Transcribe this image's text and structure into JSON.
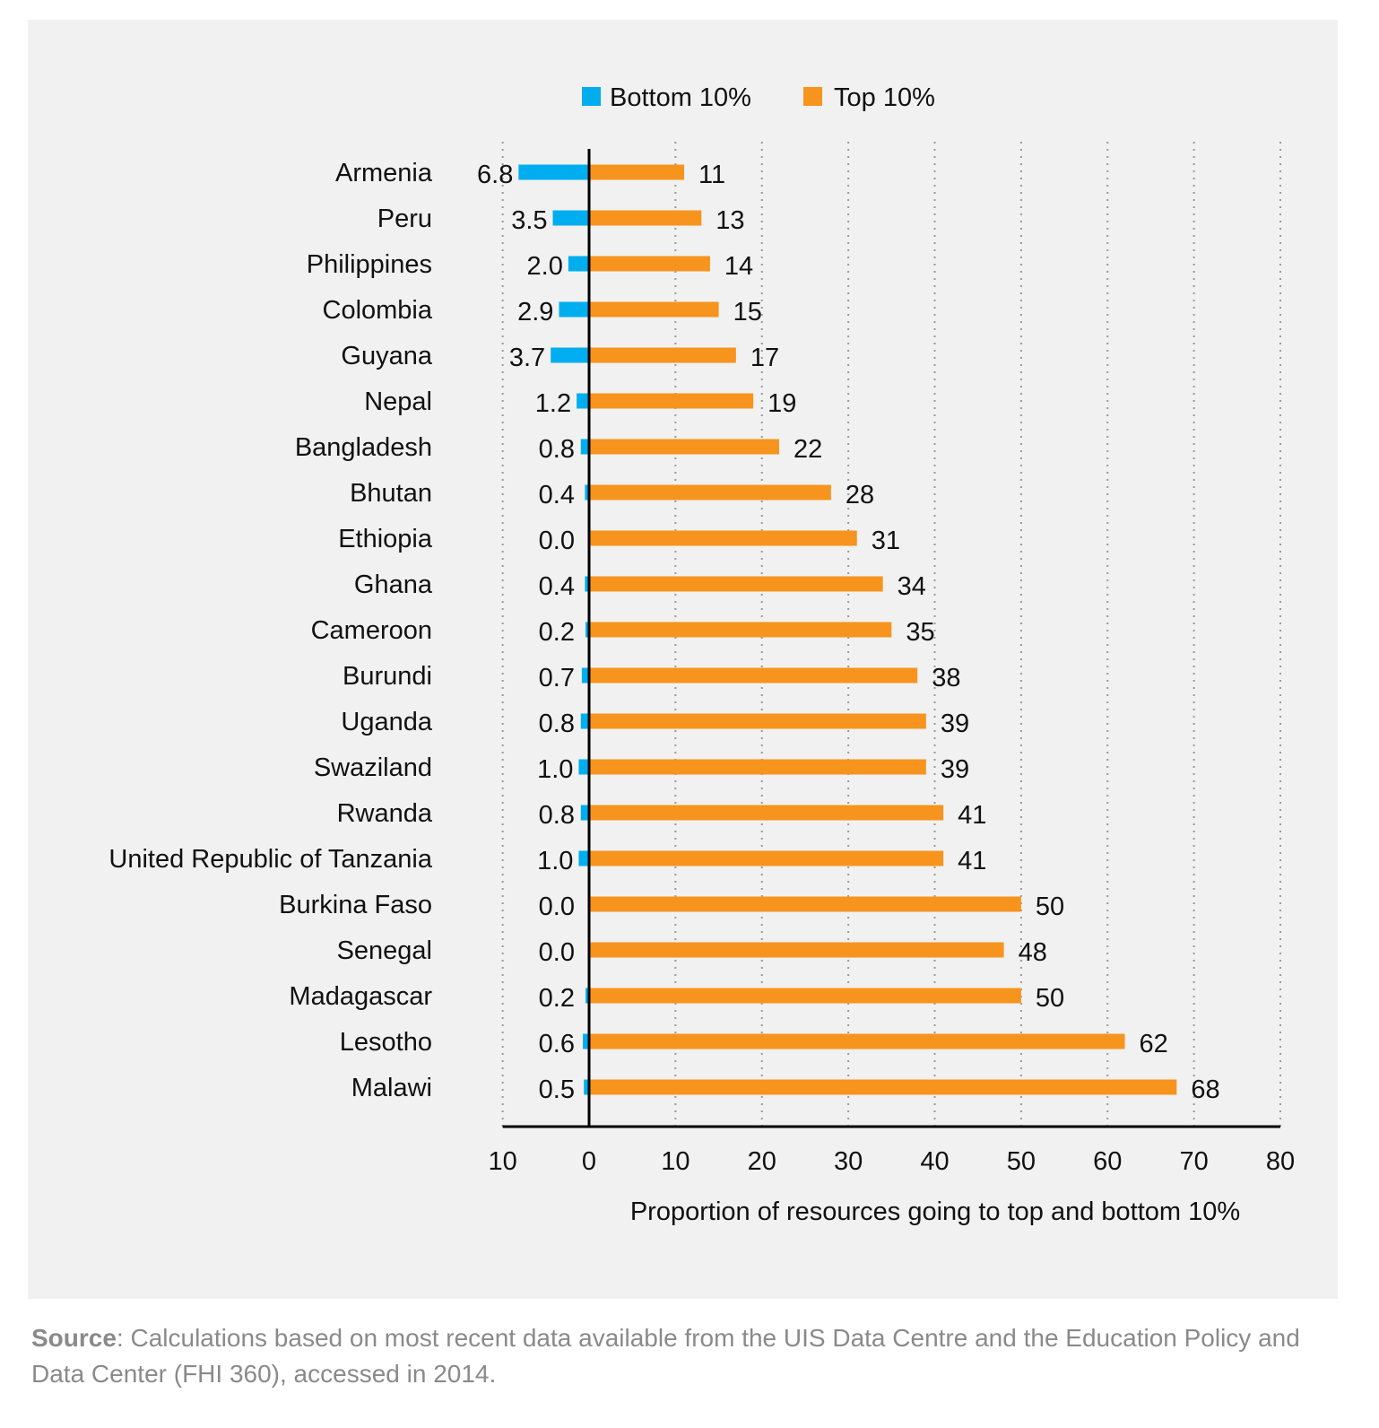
{
  "chart_data": {
    "type": "bar",
    "orientation": "horizontal",
    "diverging": true,
    "categories": [
      "Armenia",
      "Peru",
      "Philippines",
      "Colombia",
      "Guyana",
      "Nepal",
      "Bangladesh",
      "Bhutan",
      "Ethiopia",
      "Ghana",
      "Cameroon",
      "Burundi",
      "Uganda",
      "Swaziland",
      "Rwanda",
      "United Republic of Tanzania",
      "Burkina Faso",
      "Senegal",
      "Madagascar",
      "Lesotho",
      "Malawi"
    ],
    "series": [
      {
        "name": "Bottom 10%",
        "color": "#00aeef",
        "direction": "left",
        "values": [
          6.8,
          3.5,
          2.0,
          2.9,
          3.7,
          1.2,
          0.8,
          0.4,
          0.0,
          0.4,
          0.2,
          0.7,
          0.8,
          1.0,
          0.8,
          1.0,
          0.0,
          0.0,
          0.2,
          0.6,
          0.5
        ],
        "labels": [
          "6.8",
          "3.5",
          "2.0",
          "2.9",
          "3.7",
          "1.2",
          "0.8",
          "0.4",
          "0.0",
          "0.4",
          "0.2",
          "0.7",
          "0.8",
          "1.0",
          "0.8",
          "1.0",
          "0.0",
          "0.0",
          "0.2",
          "0.6",
          "0.5"
        ]
      },
      {
        "name": "Top 10%",
        "color": "#f7941d",
        "direction": "right",
        "values": [
          11,
          13,
          14,
          15,
          17,
          19,
          22,
          28,
          31,
          34,
          35,
          38,
          39,
          39,
          41,
          41,
          50,
          48,
          50,
          62,
          68
        ],
        "labels": [
          "11",
          "13",
          "14",
          "15",
          "17",
          "19",
          "22",
          "28",
          "31",
          "34",
          "35",
          "38",
          "39",
          "39",
          "41",
          "41",
          "50",
          "48",
          "50",
          "62",
          "68"
        ]
      }
    ],
    "xlabel": "Proportion of resources going to top and bottom 10%",
    "xlim": [
      -10,
      80
    ],
    "xticks": [
      -10,
      0,
      10,
      20,
      30,
      40,
      50,
      60,
      70,
      80
    ],
    "xtick_labels": [
      "10",
      "0",
      "10",
      "20",
      "30",
      "40",
      "50",
      "60",
      "70",
      "80"
    ],
    "grid": "vertical dotted",
    "legend": "top-center"
  },
  "source": {
    "label": "Source",
    "text": ": Calculations based on most recent data available from the UIS Data Centre and the Education Policy and Data Center (FHI 360), accessed in 2014."
  }
}
